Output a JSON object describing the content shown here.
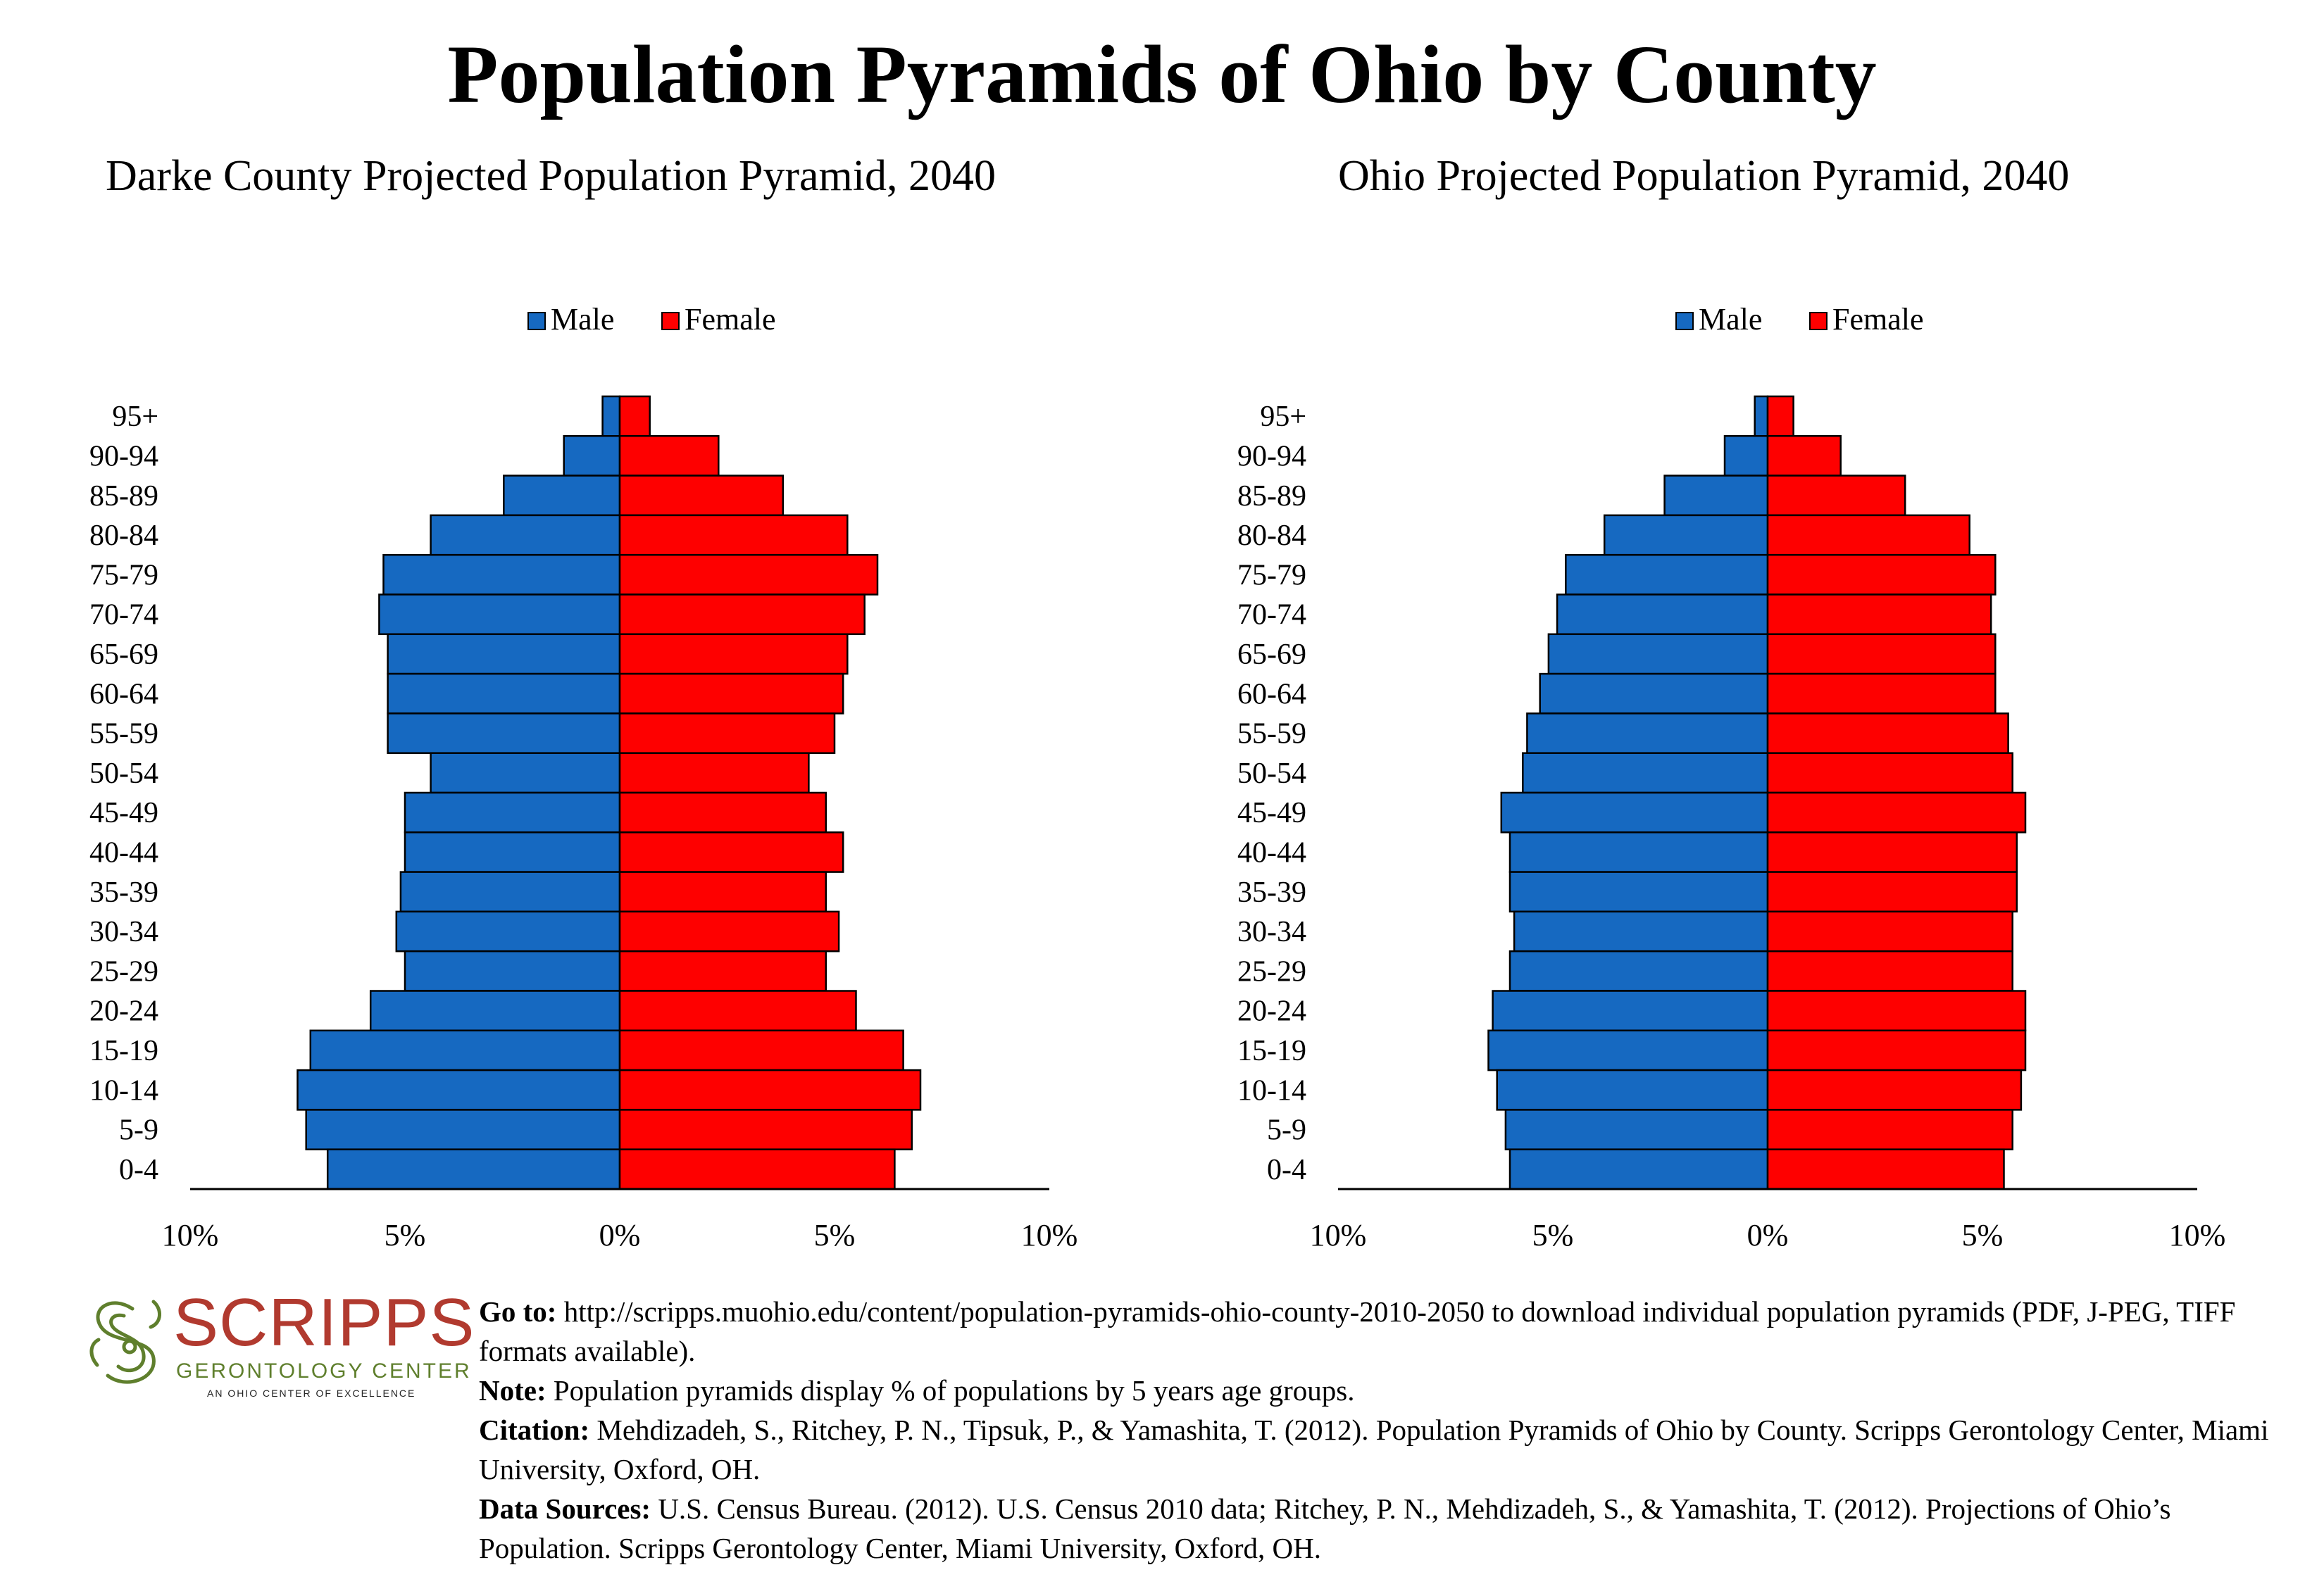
{
  "title": "Population Pyramids of Ohio by County",
  "colors": {
    "male": "#1669c1",
    "female": "#fe0000",
    "outline": "#000000"
  },
  "chart_data": [
    {
      "type": "bar",
      "title": "Darke County Projected Population Pyramid, 2040",
      "legend": [
        "Male",
        "Female"
      ],
      "legend_position": "top-center",
      "categories": [
        "95+",
        "90-94",
        "85-89",
        "80-84",
        "75-79",
        "70-74",
        "65-69",
        "60-64",
        "55-59",
        "50-54",
        "45-49",
        "40-44",
        "35-39",
        "30-34",
        "25-29",
        "20-24",
        "15-19",
        "10-14",
        "5-9",
        "0-4"
      ],
      "series": [
        {
          "name": "Male",
          "values": [
            0.4,
            1.3,
            2.7,
            4.4,
            5.5,
            5.6,
            5.4,
            5.4,
            5.4,
            4.4,
            5.0,
            5.0,
            5.1,
            5.2,
            5.0,
            5.8,
            7.2,
            7.5,
            7.3,
            6.8
          ]
        },
        {
          "name": "Female",
          "values": [
            0.7,
            2.3,
            3.8,
            5.3,
            6.0,
            5.7,
            5.3,
            5.2,
            5.0,
            4.4,
            4.8,
            5.2,
            4.8,
            5.1,
            4.8,
            5.5,
            6.6,
            7.0,
            6.8,
            6.4
          ]
        }
      ],
      "xticks": [
        "10%",
        "5%",
        "0%",
        "5%",
        "10%"
      ],
      "xlim": [
        -10,
        10
      ],
      "grid": false
    },
    {
      "type": "bar",
      "title": "Ohio Projected Population Pyramid, 2040",
      "legend": [
        "Male",
        "Female"
      ],
      "legend_position": "top-center",
      "categories": [
        "95+",
        "90-94",
        "85-89",
        "80-84",
        "75-79",
        "70-74",
        "65-69",
        "60-64",
        "55-59",
        "50-54",
        "45-49",
        "40-44",
        "35-39",
        "30-34",
        "25-29",
        "20-24",
        "15-19",
        "10-14",
        "5-9",
        "0-4"
      ],
      "series": [
        {
          "name": "Male",
          "values": [
            0.3,
            1.0,
            2.4,
            3.8,
            4.7,
            4.9,
            5.1,
            5.3,
            5.6,
            5.7,
            6.2,
            6.0,
            6.0,
            5.9,
            6.0,
            6.4,
            6.5,
            6.3,
            6.1,
            6.0
          ]
        },
        {
          "name": "Female",
          "values": [
            0.6,
            1.7,
            3.2,
            4.7,
            5.3,
            5.2,
            5.3,
            5.3,
            5.6,
            5.7,
            6.0,
            5.8,
            5.8,
            5.7,
            5.7,
            6.0,
            6.0,
            5.9,
            5.7,
            5.5
          ]
        }
      ],
      "xticks": [
        "10%",
        "5%",
        "0%",
        "5%",
        "10%"
      ],
      "xlim": [
        -10,
        10
      ],
      "grid": false
    }
  ],
  "logo": {
    "name": "SCRIPPS",
    "subtitle": "GERONTOLOGY CENTER",
    "tagline": "AN OHIO CENTER OF EXCELLENCE"
  },
  "notes": [
    {
      "label": "Go to:",
      "text": " http://scripps.muohio.edu/content/population-pyramids-ohio-county-2010-2050 to download individual population pyramids (PDF, J-PEG, TIFF formats available)."
    },
    {
      "label": "Note:",
      "text": " Population pyramids display % of populations by 5 years age groups."
    },
    {
      "label": "Citation:",
      "text": " Mehdizadeh, S., Ritchey, P. N., Tipsuk, P., & Yamashita, T. (2012). Population Pyramids of Ohio by County. Scripps Gerontology Center, Miami University, Oxford, OH."
    },
    {
      "label": "Data Sources:",
      "text": " U.S. Census Bureau. (2012). U.S. Census 2010 data; Ritchey, P. N., Mehdizadeh, S., & Yamashita, T. (2012). Projections of Ohio’s Population. Scripps Gerontology Center, Miami University, Oxford, OH."
    }
  ]
}
